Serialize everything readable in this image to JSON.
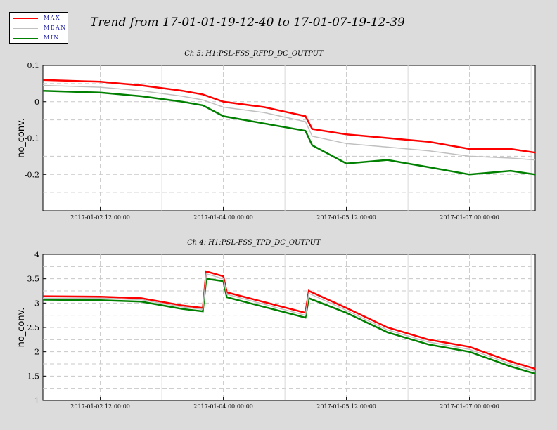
{
  "header": {
    "title": "Trend from 17-01-01-19-12-40 to 17-01-07-19-12-39"
  },
  "legend": [
    {
      "label": "MAX",
      "color": "#ff0000"
    },
    {
      "label": "MEAN",
      "color": "#c0c0c0"
    },
    {
      "label": "MIN",
      "color": "#008000"
    }
  ],
  "colors": {
    "max": "#ff0000",
    "mean": "#c0c0c0",
    "min": "#008000",
    "background": "#dcdcdc",
    "plot_bg": "#ffffff"
  },
  "chart_data": [
    {
      "type": "line",
      "title": "Ch 5: H1:PSL-FSS_RFPD_DC_OUTPUT",
      "ylabel": "no_conv.",
      "xlabel": "",
      "ylim": [
        -0.3,
        0.1
      ],
      "yticks": [
        -0.2,
        -0.1,
        0,
        0.1
      ],
      "ytick_labels": [
        "-0.2",
        "-0.1",
        "0",
        "0.1"
      ],
      "xlim": [
        "2017-01-01 19:12:40",
        "2017-01-07 19:12:39"
      ],
      "xticks": [
        "2017-01-02 12:00:00",
        "2017-01-04 00:00:00",
        "2017-01-05 12:00:00",
        "2017-01-07 00:00:00"
      ],
      "xtick_labels": [
        "2017-01-02 12:00:00",
        "2017-01-04 00:00:00",
        "2017-01-05 12:00:00",
        "2017-01-07 00:00:00"
      ],
      "grid": true,
      "x": [
        "2017-01-01 19:12:40",
        "2017-01-02 12:00:00",
        "2017-01-03 00:00:00",
        "2017-01-03 12:00:00",
        "2017-01-03 18:00:00",
        "2017-01-04 00:00:00",
        "2017-01-04 12:00:00",
        "2017-01-05 00:00:00",
        "2017-01-05 02:00:00",
        "2017-01-05 12:00:00",
        "2017-01-06 00:00:00",
        "2017-01-06 12:00:00",
        "2017-01-07 00:00:00",
        "2017-01-07 12:00:00",
        "2017-01-07 19:12:39"
      ],
      "series": [
        {
          "name": "MAX",
          "values": [
            0.06,
            0.055,
            0.045,
            0.03,
            0.02,
            0.0,
            -0.015,
            -0.04,
            -0.075,
            -0.09,
            -0.1,
            -0.11,
            -0.13,
            -0.13,
            -0.14
          ]
        },
        {
          "name": "MEAN",
          "values": [
            0.045,
            0.04,
            0.03,
            0.015,
            0.005,
            -0.015,
            -0.03,
            -0.055,
            -0.095,
            -0.115,
            -0.125,
            -0.135,
            -0.15,
            -0.155,
            -0.16
          ]
        },
        {
          "name": "MIN",
          "values": [
            0.03,
            0.025,
            0.015,
            0.0,
            -0.01,
            -0.04,
            -0.06,
            -0.08,
            -0.12,
            -0.17,
            -0.16,
            -0.18,
            -0.2,
            -0.19,
            -0.2
          ]
        }
      ]
    },
    {
      "type": "line",
      "title": "Ch 4: H1:PSL-FSS_TPD_DC_OUTPUT",
      "ylabel": "no_conv.",
      "xlabel": "",
      "ylim": [
        1,
        4
      ],
      "yticks": [
        1,
        1.5,
        2,
        2.5,
        3,
        3.5,
        4
      ],
      "ytick_labels": [
        "1",
        "1.5",
        "2",
        "2.5",
        "3",
        "3.5",
        "4"
      ],
      "xlim": [
        "2017-01-01 19:12:40",
        "2017-01-07 19:12:39"
      ],
      "xticks": [
        "2017-01-02 12:00:00",
        "2017-01-04 00:00:00",
        "2017-01-05 12:00:00",
        "2017-01-07 00:00:00"
      ],
      "xtick_labels": [
        "2017-01-02 12:00:00",
        "2017-01-04 00:00:00",
        "2017-01-05 12:00:00",
        "2017-01-07 00:00:00"
      ],
      "grid": true,
      "x": [
        "2017-01-01 19:12:40",
        "2017-01-02 12:00:00",
        "2017-01-03 00:00:00",
        "2017-01-03 12:00:00",
        "2017-01-03 18:00:00",
        "2017-01-03 19:00:00",
        "2017-01-04 00:00:00",
        "2017-01-04 01:00:00",
        "2017-01-05 00:00:00",
        "2017-01-05 01:00:00",
        "2017-01-05 12:00:00",
        "2017-01-06 00:00:00",
        "2017-01-06 12:00:00",
        "2017-01-07 00:00:00",
        "2017-01-07 12:00:00",
        "2017-01-07 19:12:39"
      ],
      "series": [
        {
          "name": "MAX",
          "values": [
            3.14,
            3.13,
            3.1,
            2.95,
            2.9,
            3.65,
            3.55,
            3.22,
            2.8,
            3.25,
            2.9,
            2.5,
            2.25,
            2.1,
            1.8,
            1.65
          ]
        },
        {
          "name": "MEAN",
          "values": [
            3.1,
            3.1,
            3.07,
            2.92,
            2.87,
            3.6,
            3.5,
            3.18,
            2.75,
            3.2,
            2.85,
            2.45,
            2.2,
            2.05,
            1.75,
            1.6
          ]
        },
        {
          "name": "MIN",
          "values": [
            3.07,
            3.06,
            3.03,
            2.88,
            2.83,
            3.5,
            3.45,
            3.12,
            2.7,
            3.1,
            2.8,
            2.4,
            2.15,
            2.0,
            1.7,
            1.55
          ]
        }
      ]
    }
  ]
}
